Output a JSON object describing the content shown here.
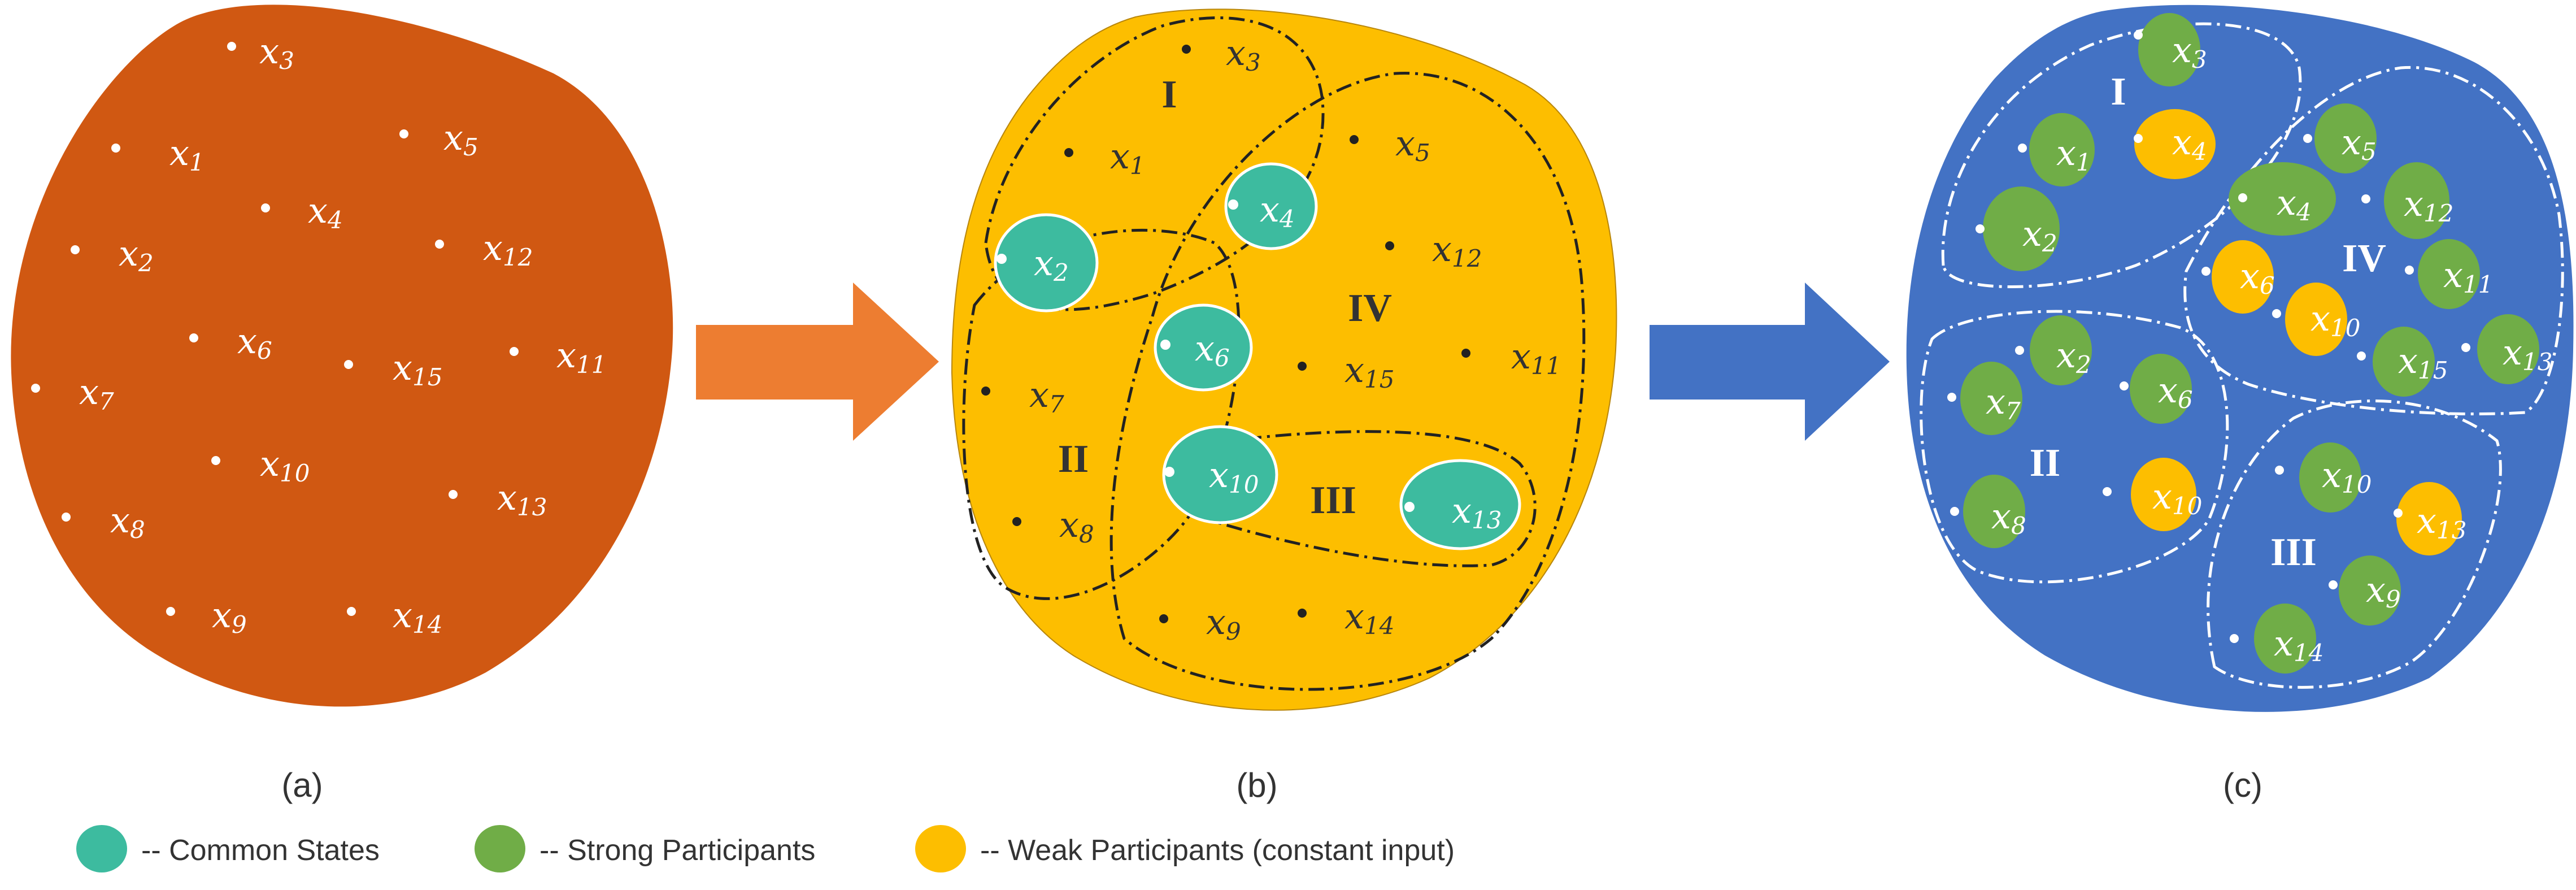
{
  "panels": {
    "a": {
      "caption": "(a)",
      "nodes": [
        {
          "var": "x",
          "sub": "3"
        },
        {
          "var": "x",
          "sub": "1"
        },
        {
          "var": "x",
          "sub": "5"
        },
        {
          "var": "x",
          "sub": "4"
        },
        {
          "var": "x",
          "sub": "2"
        },
        {
          "var": "x",
          "sub": "12"
        },
        {
          "var": "x",
          "sub": "6"
        },
        {
          "var": "x",
          "sub": "15"
        },
        {
          "var": "x",
          "sub": "11"
        },
        {
          "var": "x",
          "sub": "7"
        },
        {
          "var": "x",
          "sub": "10"
        },
        {
          "var": "x",
          "sub": "8"
        },
        {
          "var": "x",
          "sub": "13"
        },
        {
          "var": "x",
          "sub": "9"
        },
        {
          "var": "x",
          "sub": "14"
        }
      ]
    },
    "b": {
      "caption": "(b)",
      "regions": [
        "I",
        "II",
        "III",
        "IV"
      ],
      "nodes": [
        {
          "var": "x",
          "sub": "3"
        },
        {
          "var": "x",
          "sub": "1"
        },
        {
          "var": "x",
          "sub": "4"
        },
        {
          "var": "x",
          "sub": "5"
        },
        {
          "var": "x",
          "sub": "2"
        },
        {
          "var": "x",
          "sub": "12"
        },
        {
          "var": "x",
          "sub": "6"
        },
        {
          "var": "x",
          "sub": "15"
        },
        {
          "var": "x",
          "sub": "11"
        },
        {
          "var": "x",
          "sub": "7"
        },
        {
          "var": "x",
          "sub": "10"
        },
        {
          "var": "x",
          "sub": "13"
        },
        {
          "var": "x",
          "sub": "8"
        },
        {
          "var": "x",
          "sub": "9"
        },
        {
          "var": "x",
          "sub": "14"
        }
      ]
    },
    "c": {
      "caption": "(c)",
      "regions": [
        "I",
        "II",
        "III",
        "IV"
      ],
      "nodes": [
        {
          "var": "x",
          "sub": "3"
        },
        {
          "var": "x",
          "sub": "1"
        },
        {
          "var": "x",
          "sub": "4"
        },
        {
          "var": "x",
          "sub": "2"
        },
        {
          "var": "x",
          "sub": "5"
        },
        {
          "var": "x",
          "sub": "4"
        },
        {
          "var": "x",
          "sub": "12"
        },
        {
          "var": "x",
          "sub": "6"
        },
        {
          "var": "x",
          "sub": "11"
        },
        {
          "var": "x",
          "sub": "10"
        },
        {
          "var": "x",
          "sub": "15"
        },
        {
          "var": "x",
          "sub": "13"
        },
        {
          "var": "x",
          "sub": "2"
        },
        {
          "var": "x",
          "sub": "6"
        },
        {
          "var": "x",
          "sub": "7"
        },
        {
          "var": "x",
          "sub": "8"
        },
        {
          "var": "x",
          "sub": "10"
        },
        {
          "var": "x",
          "sub": "10"
        },
        {
          "var": "x",
          "sub": "13"
        },
        {
          "var": "x",
          "sub": "9"
        },
        {
          "var": "x",
          "sub": "14"
        }
      ]
    }
  },
  "legend": [
    {
      "label": "-- Common States"
    },
    {
      "label": "-- Strong Participants"
    },
    {
      "label": "-- Weak Participants (constant input)"
    }
  ],
  "colors": {
    "panel_a_fill": "#d05812",
    "panel_b_fill": "#fdbe00",
    "panel_c_fill": "#4372c4",
    "common_state": "#3dbb9f",
    "strong": "#70ad47",
    "weak": "#fdbe00",
    "arrow_1": "#ed7d31",
    "arrow_2": "#4372c4",
    "dark": "#222222"
  }
}
